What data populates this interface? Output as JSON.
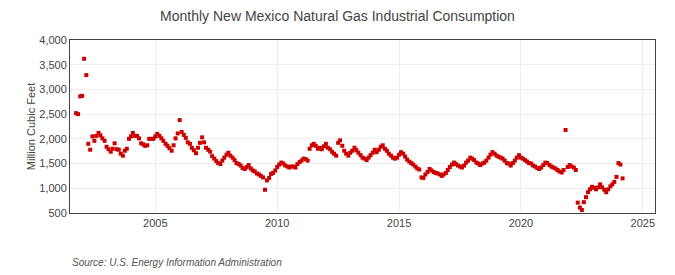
{
  "chart_data": {
    "type": "scatter",
    "title": "Monthly New Mexico Natural Gas Industrial Consumption",
    "ylabel": "Million Cubic Feet",
    "annotations": [
      "Source: U.S. Energy Information Administration"
    ],
    "color": "#cc0000",
    "marker": "square",
    "grid": true,
    "xlim": [
      2001.5,
      2025.5
    ],
    "ylim": [
      500,
      4000
    ],
    "xticks": [
      2005,
      2010,
      2015,
      2020,
      2025
    ],
    "yticks": [
      500,
      {
        "value": 1000,
        "label": "1,000"
      },
      {
        "value": 1500,
        "label": "1,500"
      },
      {
        "value": 2000,
        "label": "2,000"
      },
      {
        "value": 2500,
        "label": "2,500"
      },
      {
        "value": 3000,
        "label": "3,000"
      },
      {
        "value": 3500,
        "label": "3,500"
      },
      {
        "value": 4000,
        "label": "4,000"
      }
    ],
    "x": [
      2001.75,
      2001.83,
      2001.92,
      2002.0,
      2002.08,
      2002.17,
      2002.25,
      2002.33,
      2002.42,
      2002.5,
      2002.58,
      2002.67,
      2002.75,
      2002.83,
      2002.92,
      2003.0,
      2003.08,
      2003.17,
      2003.25,
      2003.33,
      2003.42,
      2003.5,
      2003.58,
      2003.67,
      2003.75,
      2003.83,
      2003.92,
      2004.0,
      2004.08,
      2004.17,
      2004.25,
      2004.33,
      2004.42,
      2004.5,
      2004.58,
      2004.67,
      2004.75,
      2004.83,
      2004.92,
      2005.0,
      2005.08,
      2005.17,
      2005.25,
      2005.33,
      2005.42,
      2005.5,
      2005.58,
      2005.67,
      2005.75,
      2005.83,
      2005.92,
      2006.0,
      2006.08,
      2006.17,
      2006.25,
      2006.33,
      2006.42,
      2006.5,
      2006.58,
      2006.67,
      2006.75,
      2006.83,
      2006.92,
      2007.0,
      2007.08,
      2007.17,
      2007.25,
      2007.33,
      2007.42,
      2007.5,
      2007.58,
      2007.67,
      2007.75,
      2007.83,
      2007.92,
      2008.0,
      2008.08,
      2008.17,
      2008.25,
      2008.33,
      2008.42,
      2008.5,
      2008.58,
      2008.67,
      2008.75,
      2008.83,
      2008.92,
      2009.0,
      2009.08,
      2009.17,
      2009.25,
      2009.33,
      2009.42,
      2009.5,
      2009.58,
      2009.67,
      2009.75,
      2009.83,
      2009.92,
      2010.0,
      2010.08,
      2010.17,
      2010.25,
      2010.33,
      2010.42,
      2010.5,
      2010.58,
      2010.67,
      2010.75,
      2010.83,
      2010.92,
      2011.0,
      2011.08,
      2011.17,
      2011.25,
      2011.33,
      2011.42,
      2011.5,
      2011.58,
      2011.67,
      2011.75,
      2011.83,
      2011.92,
      2012.0,
      2012.08,
      2012.17,
      2012.25,
      2012.33,
      2012.42,
      2012.5,
      2012.58,
      2012.67,
      2012.75,
      2012.83,
      2012.92,
      2013.0,
      2013.08,
      2013.17,
      2013.25,
      2013.33,
      2013.42,
      2013.5,
      2013.58,
      2013.67,
      2013.75,
      2013.83,
      2013.92,
      2014.0,
      2014.08,
      2014.17,
      2014.25,
      2014.33,
      2014.42,
      2014.5,
      2014.58,
      2014.67,
      2014.75,
      2014.83,
      2014.92,
      2015.0,
      2015.08,
      2015.17,
      2015.25,
      2015.33,
      2015.42,
      2015.5,
      2015.58,
      2015.67,
      2015.75,
      2015.83,
      2015.92,
      2016.0,
      2016.08,
      2016.17,
      2016.25,
      2016.33,
      2016.42,
      2016.5,
      2016.58,
      2016.67,
      2016.75,
      2016.83,
      2016.92,
      2017.0,
      2017.08,
      2017.17,
      2017.25,
      2017.33,
      2017.42,
      2017.5,
      2017.58,
      2017.67,
      2017.75,
      2017.83,
      2017.92,
      2018.0,
      2018.08,
      2018.17,
      2018.25,
      2018.33,
      2018.42,
      2018.5,
      2018.58,
      2018.67,
      2018.75,
      2018.83,
      2018.92,
      2019.0,
      2019.08,
      2019.17,
      2019.25,
      2019.33,
      2019.42,
      2019.5,
      2019.58,
      2019.67,
      2019.75,
      2019.83,
      2019.92,
      2020.0,
      2020.08,
      2020.17,
      2020.25,
      2020.33,
      2020.42,
      2020.5,
      2020.58,
      2020.67,
      2020.75,
      2020.83,
      2020.92,
      2021.0,
      2021.08,
      2021.17,
      2021.25,
      2021.33,
      2021.42,
      2021.5,
      2021.58,
      2021.67,
      2021.75,
      2021.83,
      2021.92,
      2022.0,
      2022.08,
      2022.17,
      2022.25,
      2022.33,
      2022.42,
      2022.5,
      2022.58,
      2022.67,
      2022.75,
      2022.83,
      2022.92,
      2023.0,
      2023.08,
      2023.17,
      2023.25,
      2023.33,
      2023.42,
      2023.5,
      2023.58,
      2023.67,
      2023.75,
      2023.83,
      2023.92,
      2024.0,
      2024.08,
      2024.17
    ],
    "values": [
      2520,
      2500,
      2860,
      2870,
      3620,
      3290,
      1900,
      1780,
      2050,
      1960,
      2060,
      2120,
      2070,
      2010,
      1960,
      1840,
      1790,
      1740,
      1800,
      1910,
      1790,
      1780,
      1700,
      1660,
      1760,
      1800,
      2000,
      2050,
      2120,
      2060,
      2060,
      2010,
      1910,
      1890,
      1860,
      1870,
      2000,
      2000,
      2000,
      2050,
      2100,
      2060,
      2010,
      1960,
      1900,
      1860,
      1810,
      1760,
      1870,
      2010,
      2110,
      2380,
      2140,
      2080,
      2020,
      1930,
      1900,
      1820,
      1770,
      1710,
      1820,
      1920,
      2030,
      1930,
      1820,
      1780,
      1740,
      1650,
      1600,
      1550,
      1510,
      1490,
      1560,
      1620,
      1680,
      1720,
      1660,
      1620,
      1570,
      1510,
      1490,
      1460,
      1410,
      1390,
      1430,
      1470,
      1400,
      1360,
      1340,
      1300,
      1280,
      1250,
      1220,
      970,
      1160,
      1210,
      1290,
      1310,
      1360,
      1430,
      1480,
      1520,
      1500,
      1460,
      1440,
      1420,
      1440,
      1440,
      1420,
      1490,
      1530,
      1560,
      1600,
      1590,
      1560,
      1800,
      1870,
      1900,
      1860,
      1800,
      1820,
      1790,
      1850,
      1900,
      1820,
      1790,
      1740,
      1700,
      1660,
      1920,
      1970,
      1860,
      1760,
      1700,
      1660,
      1720,
      1760,
      1820,
      1770,
      1720,
      1670,
      1620,
      1600,
      1570,
      1620,
      1670,
      1720,
      1780,
      1730,
      1780,
      1840,
      1870,
      1800,
      1760,
      1700,
      1660,
      1620,
      1600,
      1620,
      1680,
      1730,
      1700,
      1640,
      1580,
      1540,
      1510,
      1480,
      1440,
      1400,
      1380,
      1220,
      1210,
      1280,
      1330,
      1390,
      1360,
      1330,
      1310,
      1300,
      1280,
      1250,
      1280,
      1310,
      1370,
      1430,
      1480,
      1520,
      1490,
      1460,
      1440,
      1420,
      1460,
      1520,
      1560,
      1620,
      1600,
      1570,
      1520,
      1500,
      1470,
      1500,
      1520,
      1560,
      1620,
      1680,
      1730,
      1700,
      1660,
      1640,
      1620,
      1600,
      1560,
      1510,
      1500,
      1460,
      1510,
      1560,
      1620,
      1670,
      1620,
      1600,
      1570,
      1540,
      1510,
      1500,
      1460,
      1440,
      1410,
      1390,
      1420,
      1470,
      1520,
      1510,
      1470,
      1440,
      1420,
      1400,
      1370,
      1340,
      1320,
      1370,
      2180,
      1430,
      1470,
      1440,
      1420,
      1370,
      710,
      610,
      560,
      720,
      820,
      920,
      980,
      1030,
      1010,
      980,
      1020,
      1080,
      1020,
      970,
      920,
      980,
      1040,
      1080,
      1130,
      1230,
      1510,
      1480,
      1200
    ]
  }
}
